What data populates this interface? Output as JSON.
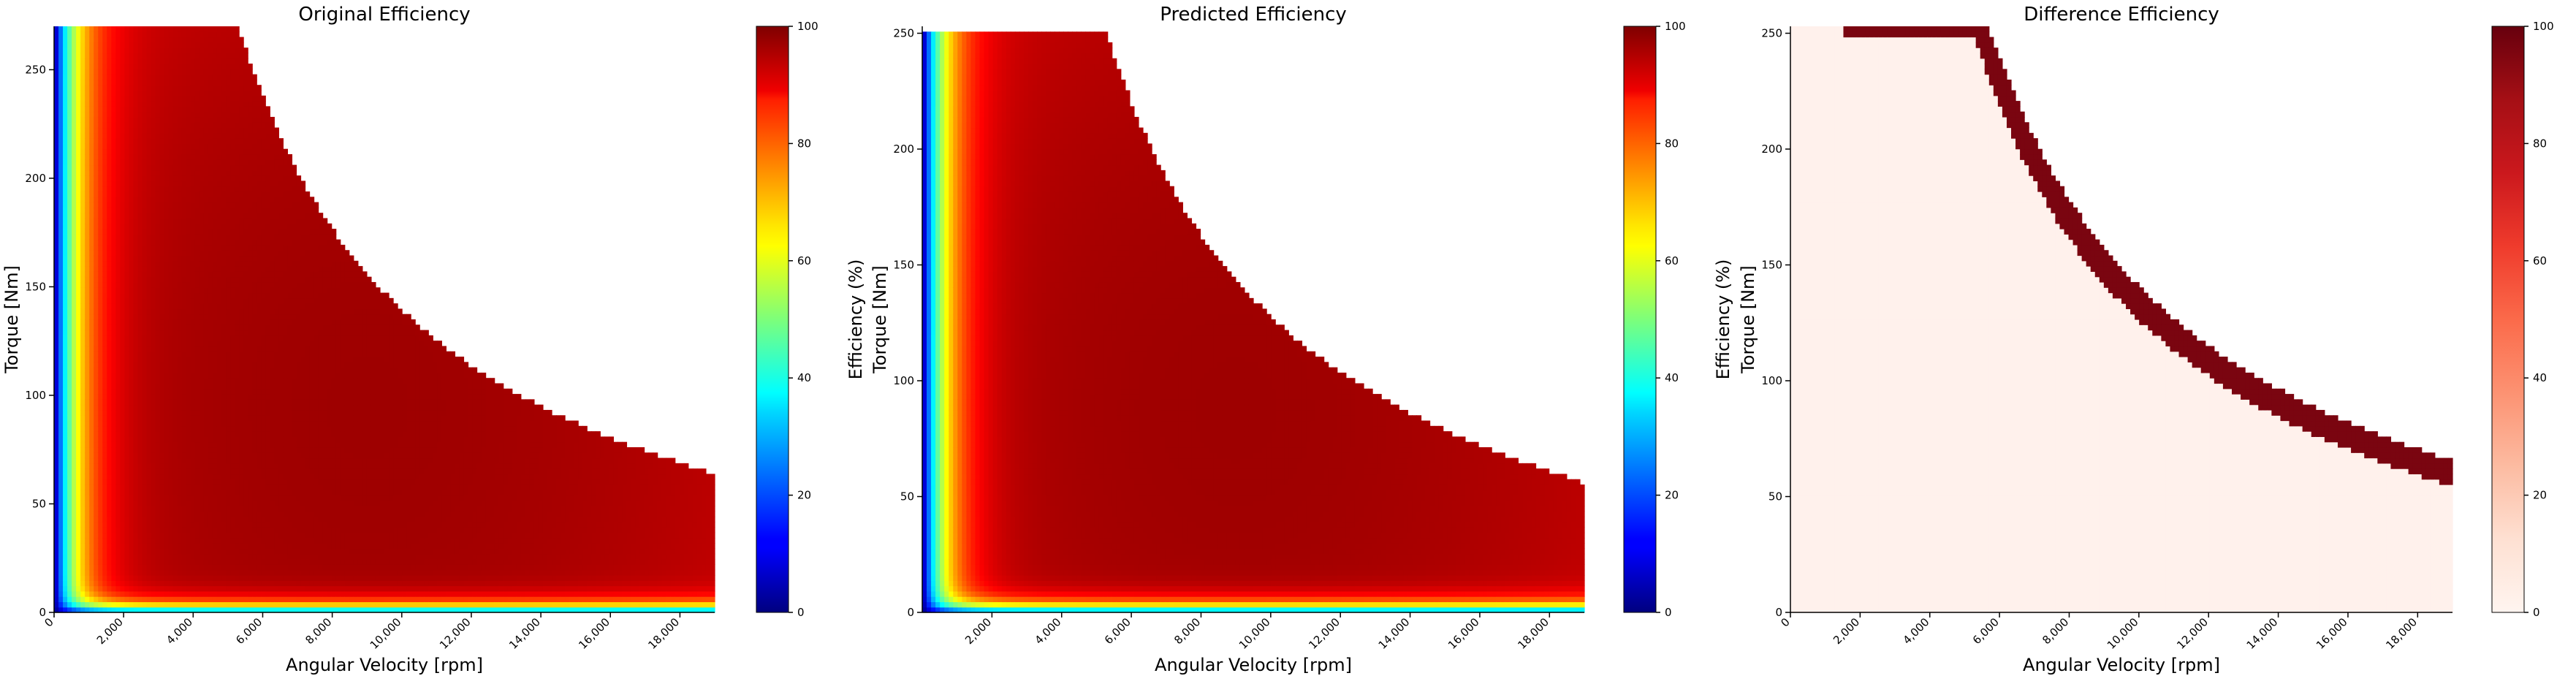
{
  "figure": {
    "panels": [
      {
        "title": "Original Efficiency",
        "xlabel": "Angular Velocity [rpm]",
        "ylabel": "Torque [Nm]",
        "cb_label": "Efficiency (%)"
      },
      {
        "title": "Predicted Efficiency",
        "xlabel": "Angular Velocity [rpm]",
        "ylabel": "Torque [Nm]",
        "cb_label": "Efficiency (%)"
      },
      {
        "title": "Difference Efficiency",
        "xlabel": "Angular Velocity [rpm]",
        "ylabel": "Torque [Nm]",
        "cb_label": "Efficiency (%)"
      }
    ]
  },
  "chart_data": [
    {
      "type": "heatmap",
      "title": "Original Efficiency",
      "xlabel": "Angular Velocity [rpm]",
      "ylabel": "Torque [Nm]",
      "xlim": [
        0,
        19000
      ],
      "ylim": [
        0,
        270
      ],
      "x_ticks": [
        0,
        2000,
        4000,
        6000,
        8000,
        10000,
        12000,
        14000,
        16000,
        18000
      ],
      "x_tick_labels": [
        "0",
        "2,000",
        "4,000",
        "6,000",
        "8,000",
        "10,000",
        "12,000",
        "14,000",
        "16,000",
        "18,000"
      ],
      "y_ticks": [
        0,
        50,
        100,
        150,
        200,
        250
      ],
      "y_tick_labels": [
        "0",
        "50",
        "100",
        "150",
        "200",
        "250"
      ],
      "colormap": "jet",
      "colorbar": {
        "label": "Efficiency (%)",
        "range": [
          0,
          100
        ],
        "ticks": [
          0,
          20,
          40,
          60,
          80,
          100
        ],
        "tick_labels": [
          "0",
          "20",
          "40",
          "60",
          "80",
          "100"
        ]
      },
      "boundary": {
        "max_torque": 270,
        "base_speed": 5300,
        "torque_at_max_speed": 64
      },
      "efficiency_range": [
        0,
        97
      ]
    },
    {
      "type": "heatmap",
      "title": "Predicted Efficiency",
      "xlabel": "Angular Velocity [rpm]",
      "ylabel": "Torque [Nm]",
      "xlim": [
        0,
        19000
      ],
      "ylim": [
        0,
        253
      ],
      "x_ticks": [
        2000,
        4000,
        6000,
        8000,
        10000,
        12000,
        14000,
        16000,
        18000
      ],
      "x_tick_labels": [
        "2,000",
        "4,000",
        "6,000",
        "8,000",
        "10,000",
        "12,000",
        "14,000",
        "16,000",
        "18,000"
      ],
      "y_ticks": [
        0,
        50,
        100,
        150,
        200,
        250
      ],
      "y_tick_labels": [
        "0",
        "50",
        "100",
        "150",
        "200",
        "250"
      ],
      "colormap": "jet",
      "colorbar": {
        "label": "Efficiency (%)",
        "range": [
          0,
          100
        ],
        "ticks": [
          0,
          20,
          40,
          60,
          80,
          100
        ],
        "tick_labels": [
          "0",
          "20",
          "40",
          "60",
          "80",
          "100"
        ]
      },
      "boundary": {
        "max_torque": 250,
        "base_speed": 5300,
        "torque_at_max_speed": 56
      },
      "efficiency_range": [
        0,
        97
      ]
    },
    {
      "type": "heatmap",
      "title": "Difference Efficiency",
      "xlabel": "Angular Velocity [rpm]",
      "ylabel": "Torque [Nm]",
      "xlim": [
        0,
        19000
      ],
      "ylim": [
        0,
        253
      ],
      "x_ticks": [
        0,
        2000,
        4000,
        6000,
        8000,
        10000,
        12000,
        14000,
        16000,
        18000
      ],
      "x_tick_labels": [
        "0",
        "2,000",
        "4,000",
        "6,000",
        "8,000",
        "10,000",
        "12,000",
        "14,000",
        "16,000",
        "18,000"
      ],
      "y_ticks": [
        0,
        50,
        100,
        150,
        200,
        250
      ],
      "y_tick_labels": [
        "0",
        "50",
        "100",
        "150",
        "200",
        "250"
      ],
      "colormap": "Reds",
      "colorbar": {
        "label": "Efficiency (%)",
        "range": [
          0,
          100
        ],
        "ticks": [
          0,
          20,
          40,
          60,
          80,
          100
        ],
        "tick_labels": [
          "0",
          "20",
          "40",
          "60",
          "80",
          "100"
        ]
      },
      "band": {
        "max_torque_a": 270,
        "max_torque_b": 250,
        "base_speed": 5300,
        "value": 100
      },
      "background_value": 3
    }
  ]
}
